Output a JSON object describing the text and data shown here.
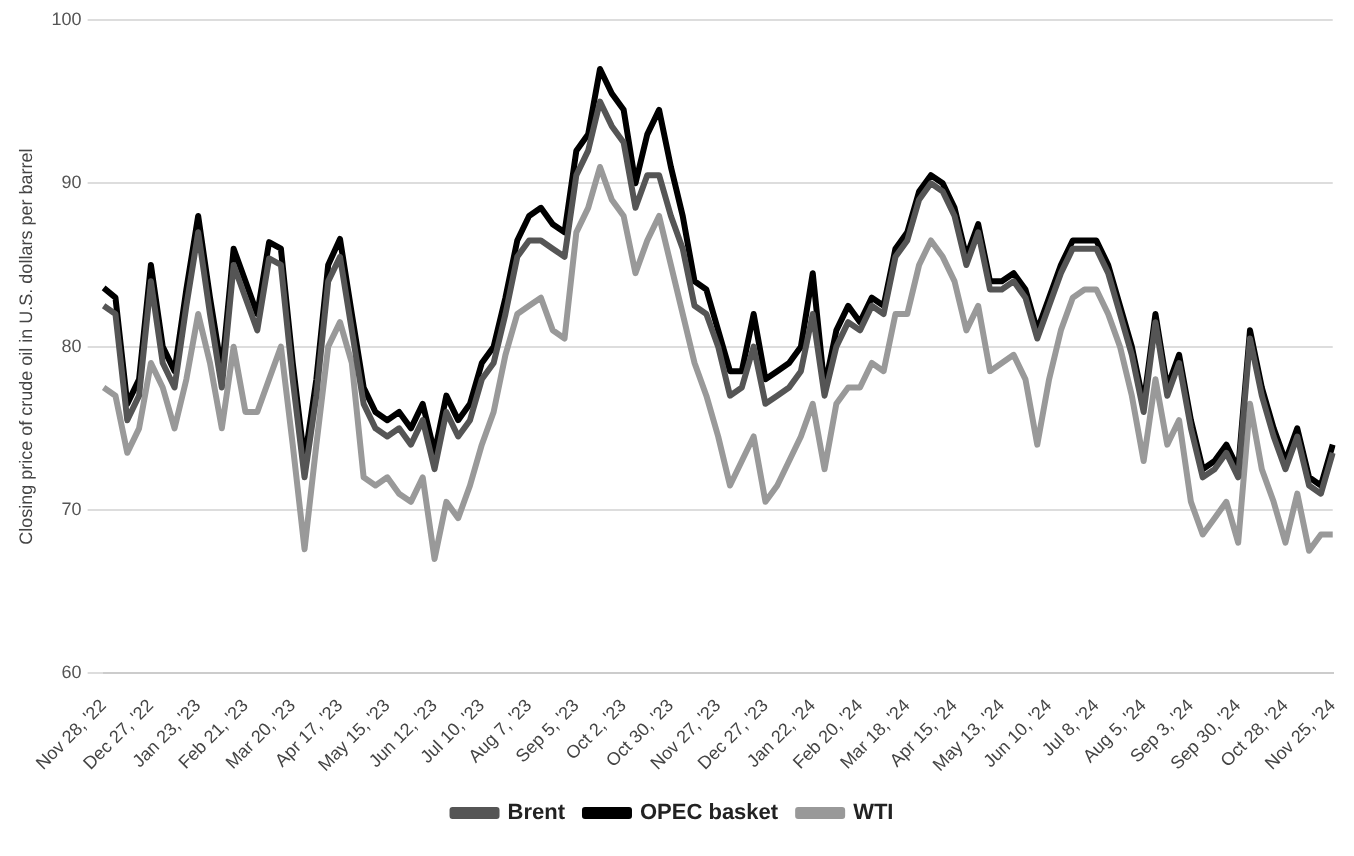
{
  "chart_data": {
    "type": "line",
    "ylabel": "Closing price of crude oil in U.S. dollars per barrel",
    "categories": [
      "Nov 28, '22",
      null,
      null,
      null,
      "Dec 27, '22",
      null,
      null,
      null,
      "Jan 23, '23",
      null,
      null,
      null,
      "Feb 21, '23",
      null,
      null,
      null,
      "Mar 20, '23",
      null,
      null,
      null,
      "Apr 17, '23",
      null,
      null,
      null,
      "May 15, '23",
      null,
      null,
      null,
      "Jun 12, '23",
      null,
      null,
      null,
      "Jul 10, '23",
      null,
      null,
      null,
      "Aug 7, '23",
      null,
      null,
      null,
      "Sep 5, '23",
      null,
      null,
      null,
      "Oct 2, '23",
      null,
      null,
      null,
      "Oct 30, '23",
      null,
      null,
      null,
      "Nov 27, '23",
      null,
      null,
      null,
      "Dec 27, '23",
      null,
      null,
      null,
      "Jan 22, '24",
      null,
      null,
      null,
      "Feb 20, '24",
      null,
      null,
      null,
      "Mar 18, '24",
      null,
      null,
      null,
      "Apr 15, '24",
      null,
      null,
      null,
      "May 13, '24",
      null,
      null,
      null,
      "Jun 10, '24",
      null,
      null,
      null,
      "Jul 8, '24",
      null,
      null,
      null,
      "Aug 5, '24",
      null,
      null,
      null,
      "Sep 3, '24",
      null,
      null,
      null,
      "Sep 30, '24",
      null,
      null,
      null,
      "Oct 28, '24",
      null,
      null,
      null,
      "Nov 25, '24"
    ],
    "series": [
      {
        "name": "Brent",
        "color": "#555555",
        "values": [
          82.5,
          82,
          75.5,
          77,
          84,
          79,
          77.5,
          82.5,
          87,
          82,
          77.5,
          85,
          83,
          81,
          85.4,
          85,
          78,
          72,
          77,
          84,
          85.5,
          81,
          76.5,
          75,
          74.5,
          75,
          74,
          75.5,
          72.5,
          76,
          74.5,
          75.5,
          78,
          79,
          82,
          85.5,
          86.5,
          86.5,
          86,
          85.5,
          90.5,
          92,
          95,
          93.5,
          92.5,
          88.5,
          90.5,
          90.5,
          88,
          86,
          82.5,
          82,
          80,
          77,
          77.5,
          80,
          76.5,
          77,
          77.5,
          78.5,
          82,
          77,
          80,
          81.5,
          81,
          82.5,
          82,
          85.5,
          86.5,
          89,
          90,
          89.5,
          88,
          85,
          87,
          83.5,
          83.5,
          84,
          83,
          80.5,
          82.5,
          84.5,
          86,
          86,
          86,
          84.5,
          82,
          79.5,
          76,
          81.5,
          77,
          79,
          75,
          72,
          72.5,
          73.5,
          72,
          80.5,
          77,
          74.5,
          72.5,
          74.5,
          71.5,
          71,
          73.5
        ]
      },
      {
        "name": "OPEC basket",
        "color": "#000000",
        "values": [
          83.6,
          83,
          76.5,
          78,
          85,
          80,
          78.5,
          83.5,
          88,
          83,
          78.5,
          86,
          84,
          82,
          86.4,
          86,
          79,
          73,
          78,
          85,
          86.6,
          82,
          77.5,
          76,
          75.5,
          76,
          75,
          76.5,
          73.5,
          77,
          75.5,
          76.5,
          79,
          80,
          83,
          86.5,
          88,
          88.5,
          87.5,
          87,
          92,
          93,
          97,
          95.5,
          94.5,
          90,
          93,
          94.5,
          91,
          88,
          84,
          83.5,
          81,
          78.5,
          78.5,
          82,
          78,
          78.5,
          79,
          80,
          84.5,
          77.5,
          81,
          82.5,
          81.5,
          83,
          82.5,
          86,
          87,
          89.5,
          90.5,
          90,
          88.5,
          85.5,
          87.5,
          84,
          84,
          84.5,
          83.5,
          81,
          83,
          85,
          86.5,
          86.5,
          86.5,
          85,
          82.5,
          80,
          76.5,
          82,
          77.5,
          79.5,
          75.5,
          72.5,
          73,
          74,
          72.5,
          81,
          77.5,
          75,
          73,
          75,
          72,
          71.5,
          74
        ]
      },
      {
        "name": "WTI",
        "color": "#999999",
        "values": [
          77.5,
          77,
          73.5,
          75,
          79,
          77.5,
          75,
          78,
          82,
          79,
          75,
          80,
          76,
          76,
          78,
          80,
          74,
          67.6,
          74,
          80,
          81.5,
          79,
          72,
          71.5,
          72,
          71,
          70.5,
          72,
          67,
          70.5,
          69.5,
          71.5,
          74,
          76,
          79.5,
          82,
          82.5,
          83,
          81,
          80.5,
          87,
          88.5,
          91,
          89,
          88,
          84.5,
          86.5,
          88,
          85,
          82,
          79,
          77,
          74.5,
          71.5,
          73,
          74.5,
          70.5,
          71.5,
          73,
          74.5,
          76.5,
          72.5,
          76.5,
          77.5,
          77.5,
          79,
          78.5,
          82,
          82,
          85,
          86.5,
          85.5,
          84,
          81,
          82.5,
          78.5,
          79,
          79.5,
          78,
          74,
          78,
          81,
          83,
          83.5,
          83.5,
          82,
          80,
          77,
          73,
          78,
          74,
          75.5,
          70.5,
          68.5,
          69.5,
          70.5,
          68,
          76.5,
          72.5,
          70.5,
          68,
          71,
          67.5,
          68.5,
          68.5
        ]
      }
    ],
    "ylim": [
      60,
      100
    ],
    "yticks": [
      60,
      70,
      80,
      90,
      100
    ],
    "grid": "y",
    "legend": "bottom",
    "marker": "none",
    "line_style": "solid"
  }
}
